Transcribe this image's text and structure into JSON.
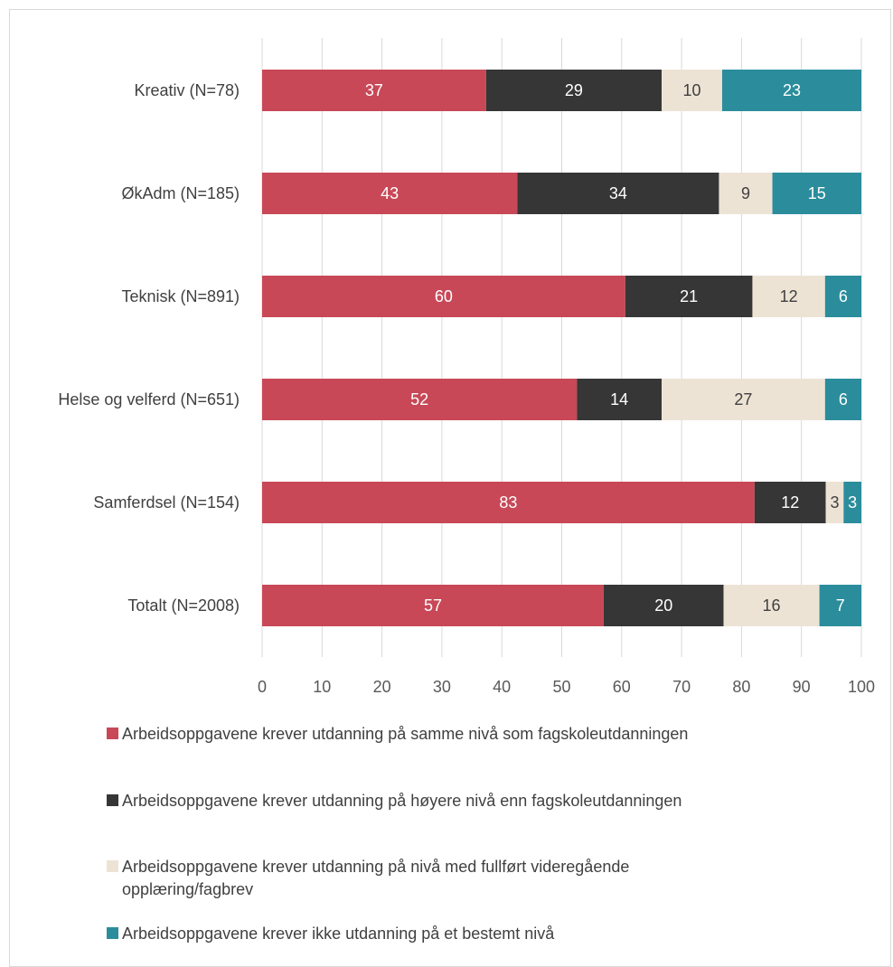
{
  "chart_data": {
    "type": "bar",
    "orientation": "horizontal",
    "stacked": true,
    "categories": [
      "Kreativ (N=78)",
      "ØkAdm (N=185)",
      "Teknisk (N=891)",
      "Helse og velferd (N=651)",
      "Samferdsel (N=154)",
      "Totalt (N=2008)"
    ],
    "series": [
      {
        "name": "Arbeidsoppgavene krever utdanning på samme nivå som fagskoleutdanningen",
        "color": "#c84857",
        "label_color": "#ffffff",
        "values": [
          37,
          43,
          60,
          52,
          83,
          57
        ],
        "labels": [
          "37",
          "43",
          "60",
          "52",
          "83",
          "57"
        ]
      },
      {
        "name": "Arbeidsoppgavene krever utdanning på høyere nivå enn fagskoleutdanningen",
        "color": "#363636",
        "label_color": "#ffffff",
        "values": [
          29,
          34,
          21,
          14,
          12,
          20
        ],
        "labels": [
          "29",
          "34",
          "21",
          "14",
          "12",
          "20"
        ]
      },
      {
        "name": "Arbeidsoppgavene krever utdanning på nivå med fullført videregående opplæring/fagbrev",
        "color": "#ede3d5",
        "label_color": "#404040",
        "values": [
          10,
          9,
          12,
          27,
          3,
          16
        ],
        "labels": [
          "10",
          "9",
          "12",
          "27",
          "3",
          "16"
        ]
      },
      {
        "name": "Arbeidsoppgavene krever ikke utdanning på et bestemt nivå",
        "color": "#2b8d9c",
        "label_color": "#ffffff",
        "values": [
          23,
          15,
          6,
          6,
          3,
          7
        ],
        "labels": [
          "23",
          "15",
          "6",
          "6",
          "3",
          "7"
        ]
      }
    ],
    "xlim": [
      0,
      100
    ],
    "xticks": [
      0,
      10,
      20,
      30,
      40,
      50,
      60,
      70,
      80,
      90,
      100
    ],
    "xtick_labels": [
      "0",
      "10",
      "20",
      "30",
      "40",
      "50",
      "60",
      "70",
      "80",
      "90",
      "100"
    ],
    "grid": "vertical",
    "legend_position": "bottom"
  },
  "legend": {
    "items": [
      {
        "line1": "Arbeidsoppgavene krever utdanning på samme nivå som fagskoleutdanningen",
        "line2": ""
      },
      {
        "line1": "Arbeidsoppgavene krever utdanning på høyere nivå enn fagskoleutdanningen",
        "line2": ""
      },
      {
        "line1": "Arbeidsoppgavene krever utdanning på nivå med fullført videregående",
        "line2": "opplæring/fagbrev"
      },
      {
        "line1": "Arbeidsoppgavene krever ikke utdanning på et bestemt nivå",
        "line2": ""
      }
    ]
  }
}
